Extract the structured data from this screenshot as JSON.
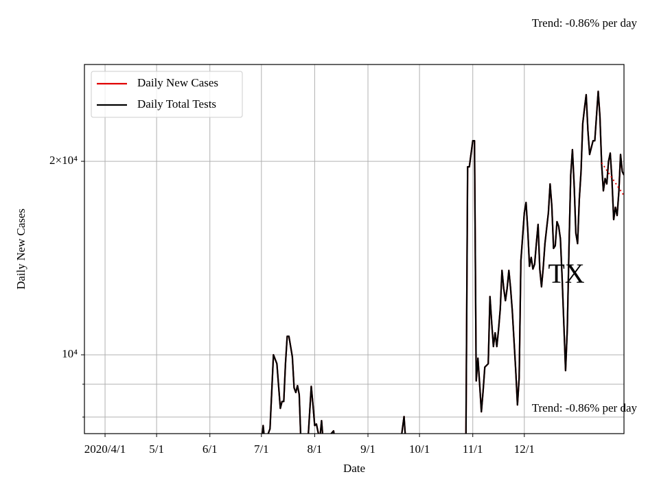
{
  "chart_data": {
    "type": "line",
    "xlabel": "Date",
    "ylabel": "Daily New Cases",
    "annotations": [
      "Trend: -0.86% per day",
      "Trend: -0.86% per day",
      "TX"
    ],
    "log_y": true,
    "grid": true,
    "legend": "upper left",
    "xlim": [
      "2020-03-20",
      "2021-01-28"
    ],
    "xticks": [
      {
        "value": "2020-04-01",
        "label": "2020/4/1"
      },
      {
        "value": "2020-05-01",
        "label": "5/1"
      },
      {
        "value": "2020-06-01",
        "label": "6/1"
      },
      {
        "value": "2020-07-01",
        "label": "7/1"
      },
      {
        "value": "2020-08-01",
        "label": "8/1"
      },
      {
        "value": "2020-09-01",
        "label": "9/1"
      },
      {
        "value": "2020-10-01",
        "label": "10/1"
      },
      {
        "value": "2020-11-01",
        "label": "11/1"
      },
      {
        "value": "2020-12-01",
        "label": "12/1"
      }
    ],
    "ylim": [
      7540,
      28290
    ],
    "yticks": [
      {
        "value": 10000,
        "label": "10⁴"
      },
      {
        "value": 20000,
        "label": "2×10⁴"
      }
    ],
    "minor_yticks": [
      8000,
      9000
    ],
    "x": [
      "2020-07-01",
      "2020-07-02",
      "2020-07-03",
      "2020-07-06",
      "2020-07-08",
      "2020-07-10",
      "2020-07-12",
      "2020-07-13",
      "2020-07-14",
      "2020-07-15",
      "2020-07-16",
      "2020-07-17",
      "2020-07-19",
      "2020-07-20",
      "2020-07-21",
      "2020-07-22",
      "2020-07-23",
      "2020-07-24",
      "2020-07-28",
      "2020-07-30",
      "2020-07-31",
      "2020-08-01",
      "2020-08-02",
      "2020-08-03",
      "2020-08-04",
      "2020-08-05",
      "2020-08-06",
      "2020-08-12",
      "2020-08-13",
      "2020-09-20",
      "2020-09-22",
      "2020-09-23",
      "2020-10-28",
      "2020-10-29",
      "2020-10-30",
      "2020-11-01",
      "2020-11-02",
      "2020-11-03",
      "2020-11-04",
      "2020-11-05",
      "2020-11-06",
      "2020-11-07",
      "2020-11-08",
      "2020-11-10",
      "2020-11-11",
      "2020-11-12",
      "2020-11-13",
      "2020-11-14",
      "2020-11-15",
      "2020-11-16",
      "2020-11-17",
      "2020-11-18",
      "2020-11-19",
      "2020-11-20",
      "2020-11-21",
      "2020-11-22",
      "2020-11-23",
      "2020-11-24",
      "2020-11-26",
      "2020-11-27",
      "2020-11-28",
      "2020-11-29",
      "2020-12-01",
      "2020-12-02",
      "2020-12-03",
      "2020-12-04",
      "2020-12-05",
      "2020-12-06",
      "2020-12-07",
      "2020-12-08",
      "2020-12-09",
      "2020-12-10",
      "2020-12-11",
      "2020-12-12",
      "2020-12-13",
      "2020-12-15",
      "2020-12-16",
      "2020-12-17",
      "2020-12-18",
      "2020-12-19",
      "2020-12-20",
      "2020-12-21",
      "2020-12-22",
      "2020-12-23",
      "2020-12-25",
      "2020-12-26",
      "2020-12-27",
      "2020-12-28",
      "2020-12-29",
      "2020-12-30",
      "2020-12-31",
      "2021-01-01",
      "2021-01-02",
      "2021-01-03",
      "2021-01-04",
      "2021-01-05",
      "2021-01-06",
      "2021-01-07",
      "2021-01-08",
      "2021-01-09",
      "2021-01-10",
      "2021-01-11",
      "2021-01-13",
      "2021-01-14",
      "2021-01-15",
      "2021-01-16",
      "2021-01-17",
      "2021-01-18",
      "2021-01-19",
      "2021-01-20",
      "2021-01-21",
      "2021-01-22",
      "2021-01-23",
      "2021-01-24",
      "2021-01-25",
      "2021-01-26",
      "2021-01-27",
      "2021-01-28"
    ],
    "series": [
      {
        "name": "Daily New Cases",
        "color": "#e00000",
        "values": [
          7300,
          7762,
          7300,
          7672,
          10000,
          9686,
          8254,
          8460,
          8460,
          9686,
          10686,
          10686,
          9926,
          8888,
          8737,
          8954,
          8672,
          7300,
          7300,
          8931,
          8357,
          7762,
          7804,
          7574,
          7400,
          7899,
          7300,
          7614,
          7300,
          7300,
          8016,
          7300,
          7300,
          19610,
          19610,
          21527,
          21527,
          9108,
          9878,
          9000,
          8153,
          8779,
          9567,
          9686,
          12321,
          11225,
          10300,
          10820,
          10300,
          10952,
          11790,
          13530,
          12693,
          12141,
          12693,
          13530,
          12693,
          11705,
          9449,
          8357,
          9220,
          14003,
          16634,
          17258,
          15645,
          13730,
          14174,
          13597,
          13834,
          14894,
          15953,
          13597,
          12756,
          13664,
          14894,
          16634,
          18443,
          17043,
          14640,
          14782,
          16112,
          15837,
          15152,
          13170,
          9449,
          10952,
          14711,
          19040,
          20855,
          18353,
          15451,
          14894,
          17472,
          19275,
          22891,
          24170,
          25390,
          22340,
          20497,
          21009,
          21527,
          21527,
          25700,
          23470,
          19756,
          17992,
          18807,
          18443,
          20000,
          20597,
          18717,
          16230,
          16964,
          16470,
          17906,
          20497,
          19275,
          19040
        ]
      },
      {
        "name": "Daily Total Tests",
        "color": "#000000",
        "values": [
          7300,
          7762,
          7300,
          7672,
          10000,
          9686,
          8254,
          8460,
          8460,
          9686,
          10686,
          10686,
          9926,
          8888,
          8737,
          8954,
          8672,
          7300,
          7300,
          8931,
          8357,
          7762,
          7804,
          7574,
          7400,
          7899,
          7300,
          7614,
          7300,
          7300,
          8016,
          7300,
          7300,
          19610,
          19610,
          21527,
          21527,
          9108,
          9878,
          9000,
          8153,
          8779,
          9567,
          9686,
          12321,
          11225,
          10300,
          10820,
          10300,
          10952,
          11790,
          13530,
          12693,
          12141,
          12693,
          13530,
          12693,
          11705,
          9449,
          8357,
          9220,
          14003,
          16634,
          17258,
          15645,
          13730,
          14174,
          13597,
          13834,
          14894,
          15953,
          13597,
          12756,
          13664,
          14894,
          16634,
          18443,
          17043,
          14640,
          14782,
          16112,
          15837,
          15152,
          13170,
          9449,
          10952,
          14711,
          19040,
          20855,
          18353,
          15451,
          14894,
          17472,
          19275,
          22891,
          24170,
          25390,
          22340,
          20497,
          21009,
          21527,
          21527,
          25700,
          23470,
          19756,
          17992,
          18807,
          18443,
          20000,
          20597,
          18717,
          16230,
          16964,
          16470,
          17906,
          20497,
          19275,
          19040
        ]
      }
    ],
    "trend": {
      "x": [
        "2021-01-15",
        "2021-01-28"
      ],
      "values": [
        19900,
        17690
      ],
      "color": "#e00000"
    }
  }
}
